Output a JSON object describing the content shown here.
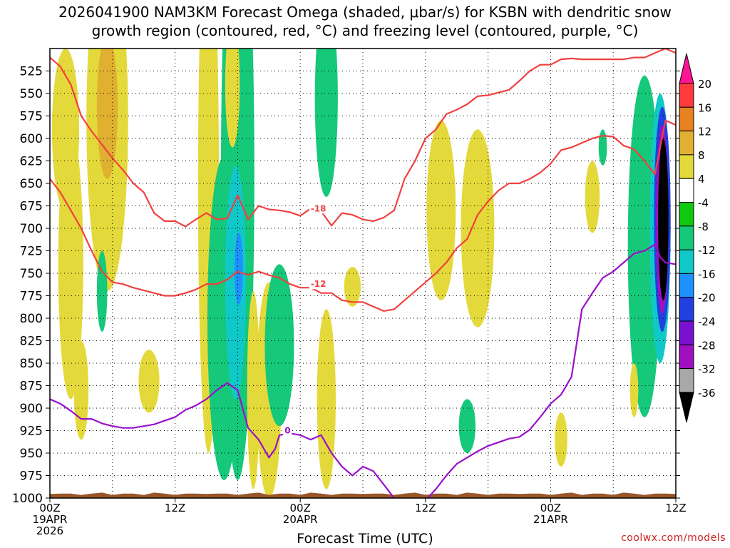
{
  "title": {
    "line1": "2026041900 NAM3KM Forecast Omega (shaded, μbar/s) for KSBN with dendritic snow",
    "line2": "growth region (contoured, red, °C) and freezing level (contoured, purple, °C)"
  },
  "credit": "coolwx.com/models",
  "chart_data": {
    "type": "heatmap",
    "xlabel": "Forecast Time (UTC)",
    "ylabel": "Pressure (hPa)",
    "xlim": [
      0,
      60
    ],
    "ylim": [
      1000,
      500
    ],
    "y_ticks": [
      525,
      550,
      575,
      600,
      625,
      650,
      675,
      700,
      725,
      750,
      775,
      800,
      825,
      850,
      875,
      900,
      925,
      950,
      975,
      1000
    ],
    "x_ticks": [
      {
        "hour": 0,
        "lines": [
          "00Z",
          "19APR",
          "2026"
        ]
      },
      {
        "hour": 12,
        "lines": [
          "12Z"
        ]
      },
      {
        "hour": 24,
        "lines": [
          "00Z",
          "20APR"
        ]
      },
      {
        "hour": 36,
        "lines": [
          "12Z"
        ]
      },
      {
        "hour": 48,
        "lines": [
          "00Z",
          "21APR"
        ]
      },
      {
        "hour": 60,
        "lines": [
          "12Z"
        ]
      }
    ],
    "colorbar": {
      "labels": [
        "20",
        "16",
        "12",
        "8",
        "4",
        "-4",
        "-8",
        "-12",
        "-16",
        "-20",
        "-24",
        "-28",
        "-32",
        "-36"
      ],
      "colors": [
        "#ff1493",
        "#ff3b3b",
        "#e8811f",
        "#e0b030",
        "#e4d93a",
        "#ffffff",
        "#10c810",
        "#15c87a",
        "#10c8c8",
        "#1e90ff",
        "#2040e0",
        "#7a10d0",
        "#a010c0",
        "#a8a8a8",
        "#000000"
      ]
    },
    "omega_regions": [
      {
        "t": 1.5,
        "p": 590,
        "dt": 1.3,
        "dp": 90,
        "value": 4
      },
      {
        "t": 5.5,
        "p": 580,
        "dt": 2.0,
        "dp": 190,
        "value": 4
      },
      {
        "t": 5.5,
        "p": 565,
        "dt": 1.0,
        "dp": 80,
        "value": 8
      },
      {
        "t": 5.0,
        "p": 770,
        "dt": 0.5,
        "dp": 45,
        "value": -8
      },
      {
        "t": 2.0,
        "p": 740,
        "dt": 1.2,
        "dp": 150,
        "value": 4
      },
      {
        "t": 3.0,
        "p": 880,
        "dt": 0.7,
        "dp": 55,
        "value": 4
      },
      {
        "t": 9.5,
        "p": 870,
        "dt": 1.0,
        "dp": 35,
        "value": 4
      },
      {
        "t": 15.2,
        "p": 650,
        "dt": 1.0,
        "dp": 300,
        "value": 4
      },
      {
        "t": 16.7,
        "p": 800,
        "dt": 1.6,
        "dp": 180,
        "value": -8
      },
      {
        "t": 18.0,
        "p": 640,
        "dt": 1.6,
        "dp": 340,
        "value": -8
      },
      {
        "t": 17.8,
        "p": 760,
        "dt": 1.0,
        "dp": 130,
        "value": -12
      },
      {
        "t": 18.1,
        "p": 745,
        "dt": 0.4,
        "dp": 40,
        "value": -16
      },
      {
        "t": 17.5,
        "p": 540,
        "dt": 0.7,
        "dp": 70,
        "value": 4
      },
      {
        "t": 19.5,
        "p": 880,
        "dt": 0.6,
        "dp": 110,
        "value": 4
      },
      {
        "t": 21.0,
        "p": 880,
        "dt": 1.2,
        "dp": 120,
        "value": 4
      },
      {
        "t": 21.5,
        "p": 850,
        "dt": 0.4,
        "dp": 60,
        "value": 12
      },
      {
        "t": 22.0,
        "p": 830,
        "dt": 1.4,
        "dp": 90,
        "value": -8
      },
      {
        "t": 26.5,
        "p": 555,
        "dt": 1.1,
        "dp": 110,
        "value": -8
      },
      {
        "t": 26.5,
        "p": 890,
        "dt": 0.9,
        "dp": 100,
        "value": 4
      },
      {
        "t": 29.0,
        "p": 765,
        "dt": 0.8,
        "dp": 22,
        "value": 4
      },
      {
        "t": 37.5,
        "p": 680,
        "dt": 1.4,
        "dp": 100,
        "value": 4
      },
      {
        "t": 41.0,
        "p": 700,
        "dt": 1.6,
        "dp": 110,
        "value": 4
      },
      {
        "t": 40.0,
        "p": 920,
        "dt": 0.8,
        "dp": 30,
        "value": -8
      },
      {
        "t": 52.0,
        "p": 665,
        "dt": 0.7,
        "dp": 40,
        "value": 4
      },
      {
        "t": 53.0,
        "p": 610,
        "dt": 0.4,
        "dp": 20,
        "value": -8
      },
      {
        "t": 49.0,
        "p": 935,
        "dt": 0.6,
        "dp": 30,
        "value": 4
      },
      {
        "t": 57.0,
        "p": 720,
        "dt": 1.6,
        "dp": 190,
        "value": -8
      },
      {
        "t": 58.5,
        "p": 700,
        "dt": 1.0,
        "dp": 150,
        "value": -12
      },
      {
        "t": 58.7,
        "p": 690,
        "dt": 0.8,
        "dp": 125,
        "value": -20
      },
      {
        "t": 58.7,
        "p": 690,
        "dt": 0.6,
        "dp": 105,
        "value": -28
      },
      {
        "t": 58.8,
        "p": 690,
        "dt": 0.5,
        "dp": 90,
        "value": -36
      },
      {
        "t": 56.0,
        "p": 880,
        "dt": 0.4,
        "dp": 30,
        "value": 4
      }
    ],
    "contours": [
      {
        "name": "dgz -18C",
        "color": "#f04040",
        "label": "-18",
        "label_at": [
          25,
          678
        ],
        "points": [
          [
            0,
            510
          ],
          [
            1,
            520
          ],
          [
            2,
            540
          ],
          [
            3,
            575
          ],
          [
            4,
            592
          ],
          [
            5,
            607
          ],
          [
            6,
            622
          ],
          [
            7,
            635
          ],
          [
            8,
            650
          ],
          [
            9,
            660
          ],
          [
            10,
            683
          ],
          [
            11,
            692
          ],
          [
            12,
            692
          ],
          [
            13,
            698
          ],
          [
            14,
            690
          ],
          [
            15,
            683
          ],
          [
            16,
            690
          ],
          [
            17,
            689
          ],
          [
            18,
            663
          ],
          [
            19,
            690
          ],
          [
            20,
            675
          ],
          [
            21,
            679
          ],
          [
            22,
            680
          ],
          [
            23,
            682
          ],
          [
            24,
            686
          ],
          [
            25,
            678
          ],
          [
            26,
            681
          ],
          [
            27,
            697
          ],
          [
            28,
            683
          ],
          [
            29,
            685
          ],
          [
            30,
            690
          ],
          [
            31,
            692
          ],
          [
            32,
            688
          ],
          [
            33,
            680
          ],
          [
            34,
            645
          ],
          [
            35,
            625
          ],
          [
            36,
            600
          ],
          [
            37,
            590
          ],
          [
            38,
            573
          ],
          [
            39,
            568
          ],
          [
            40,
            562
          ],
          [
            41,
            553
          ],
          [
            42,
            552
          ],
          [
            43,
            549
          ],
          [
            44,
            546
          ],
          [
            45,
            536
          ],
          [
            46,
            525
          ],
          [
            47,
            518
          ],
          [
            48,
            518
          ],
          [
            49,
            512
          ],
          [
            50,
            511
          ],
          [
            51,
            512
          ],
          [
            52,
            512
          ],
          [
            53,
            512
          ],
          [
            54,
            512
          ],
          [
            55,
            512
          ],
          [
            56,
            510
          ],
          [
            57,
            510
          ],
          [
            58,
            505
          ],
          [
            59,
            500
          ],
          [
            60,
            505
          ]
        ]
      },
      {
        "name": "dgz -12C",
        "color": "#f04040",
        "label": "-12",
        "label_at": [
          25,
          762
        ],
        "points": [
          [
            0,
            645
          ],
          [
            1,
            660
          ],
          [
            2,
            680
          ],
          [
            3,
            700
          ],
          [
            4,
            725
          ],
          [
            5,
            748
          ],
          [
            6,
            760
          ],
          [
            7,
            762
          ],
          [
            8,
            766
          ],
          [
            9,
            769
          ],
          [
            10,
            772
          ],
          [
            11,
            775
          ],
          [
            12,
            775
          ],
          [
            13,
            772
          ],
          [
            14,
            768
          ],
          [
            15,
            762
          ],
          [
            16,
            762
          ],
          [
            17,
            757
          ],
          [
            18,
            748
          ],
          [
            19,
            752
          ],
          [
            20,
            748
          ],
          [
            21,
            752
          ],
          [
            22,
            755
          ],
          [
            23,
            762
          ],
          [
            24,
            766
          ],
          [
            25,
            766
          ],
          [
            26,
            772
          ],
          [
            27,
            772
          ],
          [
            28,
            780
          ],
          [
            29,
            782
          ],
          [
            30,
            782
          ],
          [
            31,
            787
          ],
          [
            32,
            792
          ],
          [
            33,
            790
          ],
          [
            34,
            780
          ],
          [
            35,
            770
          ],
          [
            36,
            760
          ],
          [
            37,
            750
          ],
          [
            38,
            738
          ],
          [
            39,
            722
          ],
          [
            40,
            712
          ],
          [
            41,
            685
          ],
          [
            42,
            670
          ],
          [
            43,
            658
          ],
          [
            44,
            650
          ],
          [
            45,
            650
          ],
          [
            46,
            645
          ],
          [
            47,
            638
          ],
          [
            48,
            628
          ],
          [
            49,
            613
          ],
          [
            50,
            610
          ],
          [
            51,
            605
          ],
          [
            52,
            600
          ],
          [
            53,
            597
          ],
          [
            54,
            598
          ],
          [
            55,
            608
          ],
          [
            56,
            612
          ],
          [
            57,
            625
          ],
          [
            58,
            640
          ],
          [
            59,
            580
          ],
          [
            60,
            585
          ]
        ]
      },
      {
        "name": "freezing level 0C",
        "color": "#9910cc",
        "label": "0",
        "label_at": [
          22.5,
          925
        ],
        "points": [
          [
            0,
            890
          ],
          [
            1,
            895
          ],
          [
            2,
            903
          ],
          [
            3,
            912
          ],
          [
            4,
            912
          ],
          [
            5,
            917
          ],
          [
            6,
            920
          ],
          [
            7,
            922
          ],
          [
            8,
            922
          ],
          [
            9,
            920
          ],
          [
            10,
            918
          ],
          [
            11,
            914
          ],
          [
            12,
            910
          ],
          [
            13,
            902
          ],
          [
            14,
            897
          ],
          [
            15,
            890
          ],
          [
            16,
            880
          ],
          [
            17,
            872
          ],
          [
            18,
            880
          ],
          [
            19,
            922
          ],
          [
            20,
            935
          ],
          [
            21,
            955
          ],
          [
            21.6,
            945
          ],
          [
            22,
            930
          ],
          [
            23,
            928
          ],
          [
            24,
            930
          ],
          [
            25,
            935
          ],
          [
            26,
            930
          ],
          [
            27,
            950
          ],
          [
            28,
            965
          ],
          [
            29,
            975
          ],
          [
            30,
            965
          ],
          [
            31,
            970
          ],
          [
            32,
            985
          ],
          [
            33,
            1000
          ],
          [
            34,
            1003
          ],
          [
            35,
            1003
          ],
          [
            36,
            1003
          ],
          [
            37,
            990
          ],
          [
            38,
            975
          ],
          [
            39,
            962
          ],
          [
            40,
            955
          ],
          [
            41,
            948
          ],
          [
            42,
            942
          ],
          [
            43,
            938
          ],
          [
            44,
            934
          ],
          [
            45,
            932
          ],
          [
            46,
            924
          ],
          [
            47,
            910
          ],
          [
            48,
            895
          ],
          [
            49,
            885
          ],
          [
            50,
            865
          ],
          [
            51,
            790
          ],
          [
            52,
            772
          ],
          [
            53,
            755
          ],
          [
            54,
            748
          ],
          [
            55,
            738
          ],
          [
            56,
            728
          ],
          [
            57,
            725
          ],
          [
            58,
            718
          ],
          [
            58.5,
            732
          ],
          [
            59,
            738
          ],
          [
            60,
            740
          ]
        ]
      }
    ]
  }
}
